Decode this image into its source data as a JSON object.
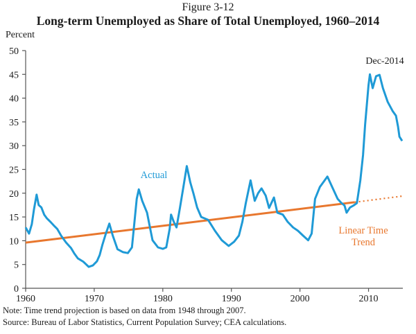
{
  "figure_number": "Figure 3-12",
  "notes": {
    "note": "Note: Time trend projection is based on data from 1948 through 2007.",
    "source": "Source: Bureau of Labor Statistics, Current Population Survey; CEA calculations."
  },
  "colors": {
    "actual": "#1f9ad6",
    "trend": "#e8772e",
    "axis": "#555555"
  },
  "chart_data": {
    "type": "line",
    "title": "Long-term Unemployed as Share of Total Unemployed, 1960–2014",
    "ylabel": "Percent",
    "xlabel": "",
    "xlim": [
      1960,
      2015
    ],
    "ylim": [
      0,
      50
    ],
    "x_ticks": [
      1960,
      1970,
      1980,
      1990,
      2000,
      2010
    ],
    "x_tick_labels": [
      "1960",
      "1970",
      "1980",
      "1990",
      "2000",
      "2010"
    ],
    "y_ticks": [
      0,
      5,
      10,
      15,
      20,
      25,
      30,
      35,
      40,
      45,
      50
    ],
    "y_tick_labels": [
      "0",
      "5",
      "10",
      "15",
      "20",
      "25",
      "30",
      "35",
      "40",
      "45",
      "50"
    ],
    "grid": false,
    "annotations": [
      {
        "text": "Actual",
        "series": "actual"
      },
      {
        "text": "Dec-2014",
        "series": "actual"
      },
      {
        "text": "Linear Time",
        "series": "trend"
      },
      {
        "text": "Trend",
        "series": "trend"
      }
    ],
    "series": [
      {
        "name": "Actual",
        "x": [
          1960.0,
          1960.3,
          1960.5,
          1960.9,
          1961.2,
          1961.6,
          1961.9,
          1962.3,
          1962.7,
          1963.1,
          1963.6,
          1964.1,
          1964.6,
          1965.2,
          1965.9,
          1966.6,
          1967.1,
          1967.6,
          1968.4,
          1969.2,
          1969.8,
          1970.4,
          1970.8,
          1971.2,
          1971.7,
          1972.2,
          1972.7,
          1973.4,
          1974.2,
          1974.9,
          1975.5,
          1975.8,
          1976.2,
          1976.5,
          1977.0,
          1977.7,
          1978.1,
          1978.5,
          1979.3,
          1980.0,
          1980.5,
          1981.0,
          1981.2,
          1981.6,
          1982.0,
          1982.5,
          1983.0,
          1983.5,
          1984.0,
          1984.5,
          1985.0,
          1985.6,
          1986.6,
          1987.6,
          1988.6,
          1989.6,
          1990.4,
          1991.1,
          1991.6,
          1992.1,
          1992.8,
          1993.4,
          1993.9,
          1994.4,
          1995.0,
          1995.5,
          1996.2,
          1996.7,
          1997.5,
          1998.2,
          1999.0,
          1999.7,
          2000.5,
          2001.2,
          2001.7,
          2002.2,
          2002.9,
          2003.5,
          2004.0,
          2004.7,
          2005.5,
          2006.0,
          2006.5,
          2006.8,
          2007.3,
          2007.8,
          2008.3,
          2008.8,
          2009.2,
          2009.5,
          2010.0,
          2010.2,
          2010.6,
          2011.1,
          2011.6,
          2012.1,
          2012.8,
          2013.5,
          2014.0,
          2014.3,
          2014.5,
          2014.9
        ],
        "values": [
          12.8,
          12.0,
          11.5,
          13.5,
          16.5,
          19.7,
          17.5,
          17.0,
          15.5,
          14.7,
          14.0,
          13.2,
          12.5,
          11.0,
          9.6,
          8.5,
          7.3,
          6.3,
          5.6,
          4.5,
          4.8,
          5.7,
          7.0,
          9.2,
          11.5,
          13.6,
          11.1,
          8.2,
          7.6,
          7.4,
          8.6,
          13.0,
          18.8,
          20.8,
          18.4,
          15.9,
          13.0,
          10.1,
          8.6,
          8.3,
          8.6,
          12.5,
          15.5,
          14.0,
          12.8,
          16.9,
          21.3,
          25.7,
          22.3,
          19.8,
          17.0,
          15.0,
          14.4,
          12.1,
          10.1,
          8.9,
          9.8,
          11.1,
          14.0,
          17.9,
          22.7,
          18.4,
          20.0,
          21.0,
          19.5,
          16.9,
          19.1,
          15.9,
          15.5,
          14.0,
          12.8,
          12.1,
          11.0,
          10.1,
          11.5,
          18.8,
          21.3,
          22.5,
          23.5,
          21.3,
          18.8,
          18.0,
          17.4,
          15.9,
          17.0,
          17.4,
          17.9,
          22.7,
          28.0,
          34.4,
          42.7,
          45.0,
          42.1,
          44.6,
          44.9,
          42.1,
          39.2,
          37.3,
          36.3,
          34.0,
          31.9,
          31.0
        ]
      },
      {
        "name": "Linear Time Trend",
        "x": [
          1960,
          2008,
          2015
        ],
        "values": [
          9.6,
          18.1,
          19.4
        ],
        "segments": [
          {
            "from": 1960,
            "to": 2008,
            "style": "solid"
          },
          {
            "from": 2008,
            "to": 2015,
            "style": "dotted"
          }
        ]
      }
    ]
  }
}
